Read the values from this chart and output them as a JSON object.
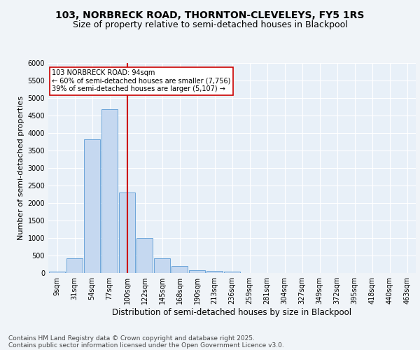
{
  "title_line1": "103, NORBRECK ROAD, THORNTON-CLEVELEYS, FY5 1RS",
  "title_line2": "Size of property relative to semi-detached houses in Blackpool",
  "xlabel": "Distribution of semi-detached houses by size in Blackpool",
  "ylabel": "Number of semi-detached properties",
  "categories": [
    "9sqm",
    "31sqm",
    "54sqm",
    "77sqm",
    "100sqm",
    "122sqm",
    "145sqm",
    "168sqm",
    "190sqm",
    "213sqm",
    "236sqm",
    "259sqm",
    "281sqm",
    "304sqm",
    "327sqm",
    "349sqm",
    "372sqm",
    "395sqm",
    "418sqm",
    "440sqm",
    "463sqm"
  ],
  "bar_values": [
    50,
    430,
    3820,
    4680,
    2300,
    1000,
    420,
    200,
    90,
    70,
    50,
    0,
    0,
    0,
    0,
    0,
    0,
    0,
    0,
    0,
    0
  ],
  "bar_color": "#c5d8f0",
  "bar_edge_color": "#5b9bd5",
  "vline_index": 4,
  "annotation_title": "103 NORBRECK ROAD: 94sqm",
  "annotation_line1": "← 60% of semi-detached houses are smaller (7,756)",
  "annotation_line2": "39% of semi-detached houses are larger (5,107) →",
  "annotation_box_color": "#ffffff",
  "annotation_box_edge": "#cc0000",
  "vline_color": "#cc0000",
  "ylim": [
    0,
    6000
  ],
  "yticks": [
    0,
    500,
    1000,
    1500,
    2000,
    2500,
    3000,
    3500,
    4000,
    4500,
    5000,
    5500,
    6000
  ],
  "footnote_line1": "Contains HM Land Registry data © Crown copyright and database right 2025.",
  "footnote_line2": "Contains public sector information licensed under the Open Government Licence v3.0.",
  "bg_color": "#e8f0f8",
  "fig_bg_color": "#f0f4f8",
  "grid_color": "#ffffff",
  "title_fontsize": 10,
  "subtitle_fontsize": 9,
  "tick_fontsize": 7,
  "ylabel_fontsize": 8,
  "xlabel_fontsize": 8.5,
  "footnote_fontsize": 6.5
}
